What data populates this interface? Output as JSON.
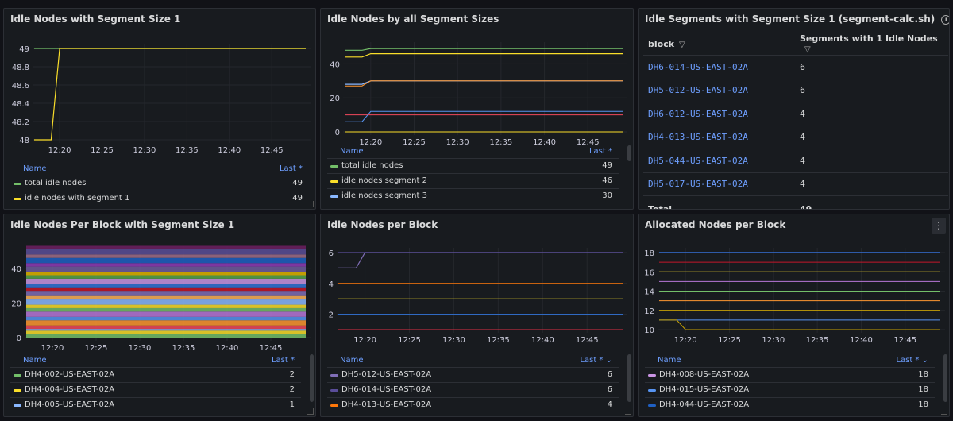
{
  "panels": {
    "p1": {
      "title": "Idle Nodes with Segment Size 1",
      "yticks": [
        "49",
        "48.8",
        "48.6",
        "48.4",
        "48.2",
        "48"
      ],
      "xticks": [
        "12:20",
        "12:25",
        "12:30",
        "12:35",
        "12:40",
        "12:45"
      ],
      "legend_name": "Name",
      "legend_last": "Last *",
      "legend": [
        {
          "name": "total idle nodes",
          "value": "49",
          "color": "#73bf69"
        },
        {
          "name": "idle nodes with segment 1",
          "value": "49",
          "color": "#fade2a"
        }
      ]
    },
    "p2": {
      "title": "Idle Nodes by all Segment Sizes",
      "yticks": [
        "40",
        "20",
        "0"
      ],
      "xticks": [
        "12:20",
        "12:25",
        "12:30",
        "12:35",
        "12:40",
        "12:45"
      ],
      "legend_name": "Name",
      "legend_last": "Last *",
      "legend": [
        {
          "name": "total idle nodes",
          "value": "49",
          "color": "#73bf69"
        },
        {
          "name": "idle nodes segment 2",
          "value": "46",
          "color": "#fade2a"
        },
        {
          "name": "idle nodes segment 3",
          "value": "30",
          "color": "#8ab8ff"
        }
      ]
    },
    "p3": {
      "title": "Idle Segments with Segment Size 1 (segment-calc.sh)",
      "info_icon": "i",
      "col_block": "block",
      "col_segments": "Segments with 1 Idle Nodes",
      "rows": [
        {
          "block": "DH6-014-US-EAST-02A",
          "value": "6"
        },
        {
          "block": "DH5-012-US-EAST-02A",
          "value": "6"
        },
        {
          "block": "DH6-012-US-EAST-02A",
          "value": "4"
        },
        {
          "block": "DH4-013-US-EAST-02A",
          "value": "4"
        },
        {
          "block": "DH5-044-US-EAST-02A",
          "value": "4"
        },
        {
          "block": "DH5-017-US-EAST-02A",
          "value": "4"
        }
      ],
      "total_label": "Total",
      "total_value": "49"
    },
    "p4": {
      "title": "Idle Nodes Per Block with Segment Size 1",
      "yticks": [
        "40",
        "20",
        "0"
      ],
      "xticks": [
        "12:20",
        "12:25",
        "12:30",
        "12:35",
        "12:40",
        "12:45"
      ],
      "legend_name": "Name",
      "legend_last": "Last *",
      "legend": [
        {
          "name": "DH4-002-US-EAST-02A",
          "value": "2",
          "color": "#73bf69"
        },
        {
          "name": "DH4-004-US-EAST-02A",
          "value": "2",
          "color": "#fade2a"
        },
        {
          "name": "DH4-005-US-EAST-02A",
          "value": "1",
          "color": "#8ab8ff"
        }
      ]
    },
    "p5": {
      "title": "Idle Nodes per Block",
      "yticks": [
        "6",
        "4",
        "2"
      ],
      "xticks": [
        "12:20",
        "12:25",
        "12:30",
        "12:35",
        "12:40",
        "12:45"
      ],
      "legend_name": "Name",
      "legend_last": "Last * ⌄",
      "legend": [
        {
          "name": "DH5-012-US-EAST-02A",
          "value": "6",
          "color": "#806eb7"
        },
        {
          "name": "DH6-014-US-EAST-02A",
          "value": "6",
          "color": "#5a4d99"
        },
        {
          "name": "DH4-013-US-EAST-02A",
          "value": "4",
          "color": "#ff780a"
        }
      ]
    },
    "p6": {
      "title": "Allocated Nodes per Block",
      "menu_icon": "⋮",
      "yticks": [
        "18",
        "16",
        "14",
        "12",
        "10"
      ],
      "xticks": [
        "12:20",
        "12:25",
        "12:30",
        "12:35",
        "12:40",
        "12:45"
      ],
      "legend_name": "Name",
      "legend_last": "Last * ⌄",
      "legend": [
        {
          "name": "DH4-008-US-EAST-02A",
          "value": "18",
          "color": "#ca95e5"
        },
        {
          "name": "DH4-015-US-EAST-02A",
          "value": "18",
          "color": "#5794f2"
        },
        {
          "name": "DH4-044-US-EAST-02A",
          "value": "18",
          "color": "#1f60c4"
        }
      ]
    }
  },
  "chart_data": [
    {
      "type": "line",
      "title": "Idle Nodes with Segment Size 1",
      "x": [
        "12:17",
        "12:19",
        "12:20",
        "12:49"
      ],
      "series": [
        {
          "name": "total idle nodes",
          "values": [
            49,
            49,
            49,
            49
          ]
        },
        {
          "name": "idle nodes with segment 1",
          "values": [
            48,
            48,
            49,
            49
          ]
        }
      ],
      "ylim": [
        47.9,
        49.1
      ]
    },
    {
      "type": "line",
      "title": "Idle Nodes by all Segment Sizes",
      "x": [
        "12:17",
        "12:19",
        "12:20",
        "12:49"
      ],
      "series": [
        {
          "name": "total idle nodes",
          "values": [
            48,
            48,
            49,
            49
          ]
        },
        {
          "name": "idle nodes segment 2",
          "values": [
            44,
            44,
            46,
            46
          ]
        },
        {
          "name": "idle nodes segment 3",
          "values": [
            28,
            28,
            30,
            30
          ]
        }
      ],
      "ylim": [
        -2,
        52
      ]
    },
    {
      "type": "area",
      "title": "Idle Nodes Per Block with Segment Size 1",
      "x": [
        "12:17",
        "12:49"
      ],
      "series": [
        {
          "name": "DH4-002-US-EAST-02A",
          "values": [
            2,
            2
          ]
        },
        {
          "name": "DH4-004-US-EAST-02A",
          "values": [
            2,
            2
          ]
        },
        {
          "name": "DH4-005-US-EAST-02A",
          "values": [
            1,
            1
          ]
        }
      ],
      "ylim": [
        0,
        50
      ]
    },
    {
      "type": "line",
      "title": "Idle Nodes per Block",
      "x": [
        "12:17",
        "12:19",
        "12:20",
        "12:49"
      ],
      "series": [
        {
          "name": "DH5-012-US-EAST-02A",
          "values": [
            5,
            5,
            6,
            6
          ]
        },
        {
          "name": "DH6-014-US-EAST-02A",
          "values": [
            6,
            6,
            6,
            6
          ]
        },
        {
          "name": "DH4-013-US-EAST-02A",
          "values": [
            4,
            4,
            4,
            4
          ]
        }
      ],
      "ylim": [
        0.5,
        6.5
      ]
    },
    {
      "type": "line",
      "title": "Allocated Nodes per Block",
      "x": [
        "12:17",
        "12:19",
        "12:20",
        "12:49"
      ],
      "series": [
        {
          "name": "DH4-008-US-EAST-02A",
          "values": [
            18,
            18,
            18,
            18
          ]
        },
        {
          "name": "DH4-015-US-EAST-02A",
          "values": [
            18,
            18,
            18,
            18
          ]
        },
        {
          "name": "DH4-044-US-EAST-02A",
          "values": [
            18,
            18,
            18,
            18
          ]
        }
      ],
      "ylim": [
        9.5,
        19
      ]
    }
  ]
}
